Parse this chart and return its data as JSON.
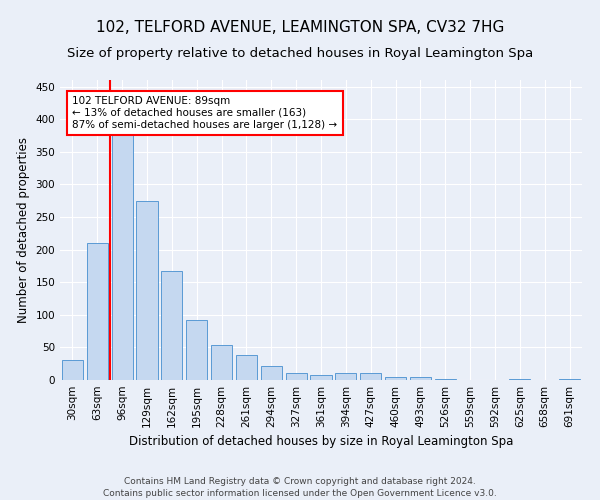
{
  "title": "102, TELFORD AVENUE, LEAMINGTON SPA, CV32 7HG",
  "subtitle": "Size of property relative to detached houses in Royal Leamington Spa",
  "xlabel": "Distribution of detached houses by size in Royal Leamington Spa",
  "ylabel": "Number of detached properties",
  "footer1": "Contains HM Land Registry data © Crown copyright and database right 2024.",
  "footer2": "Contains public sector information licensed under the Open Government Licence v3.0.",
  "bar_labels": [
    "30sqm",
    "63sqm",
    "96sqm",
    "129sqm",
    "162sqm",
    "195sqm",
    "228sqm",
    "261sqm",
    "294sqm",
    "327sqm",
    "361sqm",
    "394sqm",
    "427sqm",
    "460sqm",
    "493sqm",
    "526sqm",
    "559sqm",
    "592sqm",
    "625sqm",
    "658sqm",
    "691sqm"
  ],
  "bar_values": [
    31,
    210,
    380,
    275,
    167,
    92,
    53,
    39,
    21,
    11,
    7,
    11,
    10,
    4,
    5,
    2,
    0,
    0,
    2,
    0,
    2
  ],
  "bar_color": "#c5d8f0",
  "bar_edge_color": "#5a9ad5",
  "annotation_text": "102 TELFORD AVENUE: 89sqm\n← 13% of detached houses are smaller (163)\n87% of semi-detached houses are larger (1,128) →",
  "vline_color": "red",
  "annotation_box_color": "white",
  "annotation_box_edgecolor": "red",
  "ylim": [
    0,
    460
  ],
  "yticks": [
    0,
    50,
    100,
    150,
    200,
    250,
    300,
    350,
    400,
    450
  ],
  "background_color": "#eaeff8",
  "grid_color": "#ffffff",
  "title_fontsize": 11,
  "subtitle_fontsize": 9.5,
  "xlabel_fontsize": 8.5,
  "ylabel_fontsize": 8.5,
  "tick_fontsize": 7.5,
  "annotation_fontsize": 7.5,
  "footer_fontsize": 6.5
}
